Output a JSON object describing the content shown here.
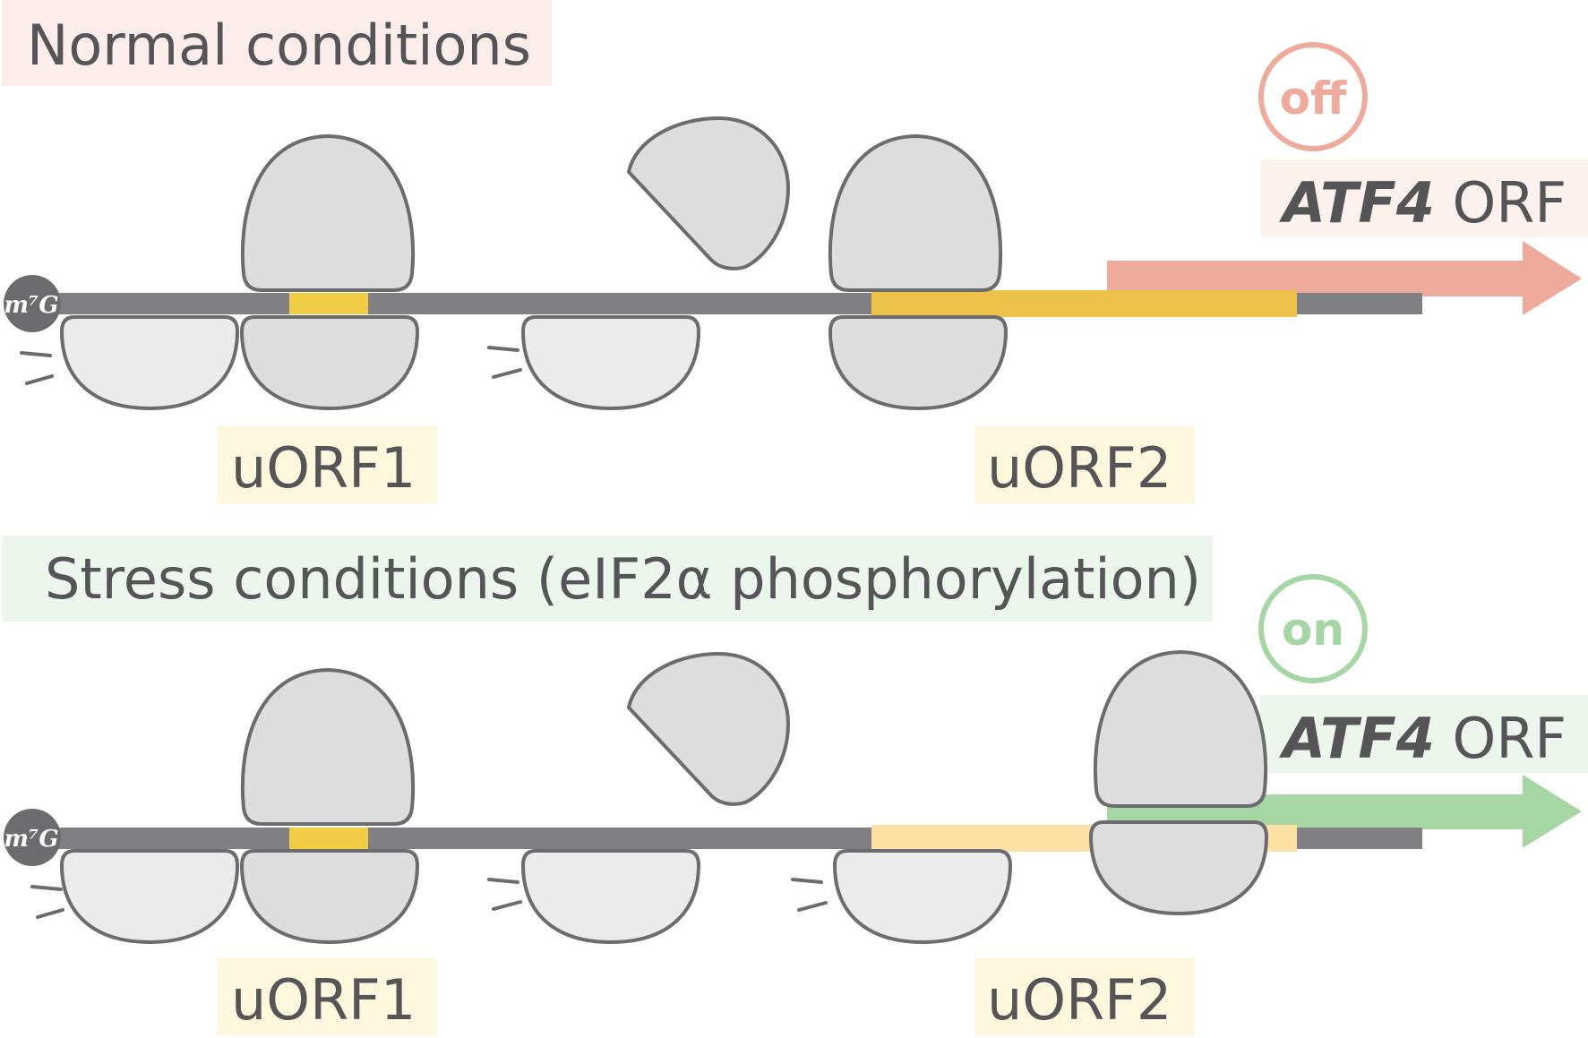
{
  "panels": [
    {
      "title": "Normal conditions",
      "status": "off",
      "orf_gene": "ATF4",
      "orf_suffix": " ORF",
      "cap_label": "m⁷G",
      "uorf1_label": "uORF1",
      "uorf2_label": "uORF2"
    },
    {
      "title": "Stress conditions (eIF2α phosphorylation)",
      "status": "on",
      "orf_gene": "ATF4",
      "orf_suffix": " ORF",
      "cap_label": "m⁷G",
      "uorf1_label": "uORF1",
      "uorf2_label": "uORF2"
    }
  ],
  "colors": {
    "mrna": "#807f83",
    "uorf1": "#f0cd45",
    "uorf2_normal": "#edc24a",
    "uorf2_stress": "#fde0a4",
    "off": "#eeaa9b",
    "on": "#a6d6a3",
    "title_bg_normal": "#fcecea",
    "title_bg_stress": "#edf6ed",
    "uorf_label_bg": "#fdf7de",
    "atf4_bg_normal": "#fdf1ed",
    "atf4_bg_stress": "#edf6ed",
    "large_subunit": "#dddddd",
    "small_subunit": "#ebebeb",
    "outline": "#6c6c6e",
    "cap": "#6c6c6e",
    "text": "#555557"
  }
}
